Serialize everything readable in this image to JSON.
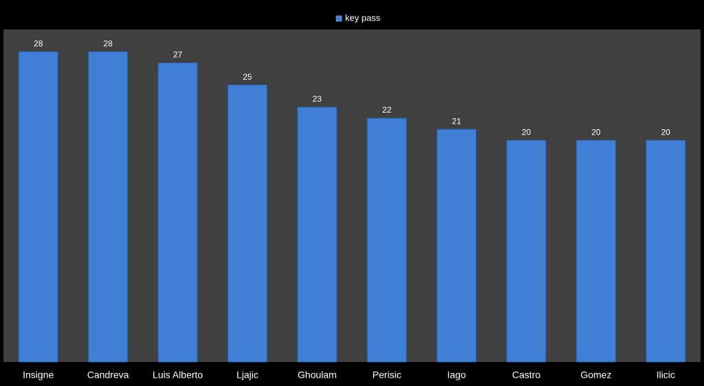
{
  "chart_data": {
    "type": "bar",
    "categories": [
      "Insigne",
      "Candreva",
      "Luis Alberto",
      "Ljajic",
      "Ghoulam",
      "Perisic",
      "Iago",
      "Castro",
      "Gomez",
      "Ilicic"
    ],
    "series": [
      {
        "name": "key pass",
        "color": "#3f7fd6",
        "values": [
          28,
          28,
          27,
          25,
          23,
          22,
          21,
          20,
          20,
          20
        ]
      }
    ],
    "ylim": [
      0,
      30
    ],
    "legend": "top"
  }
}
